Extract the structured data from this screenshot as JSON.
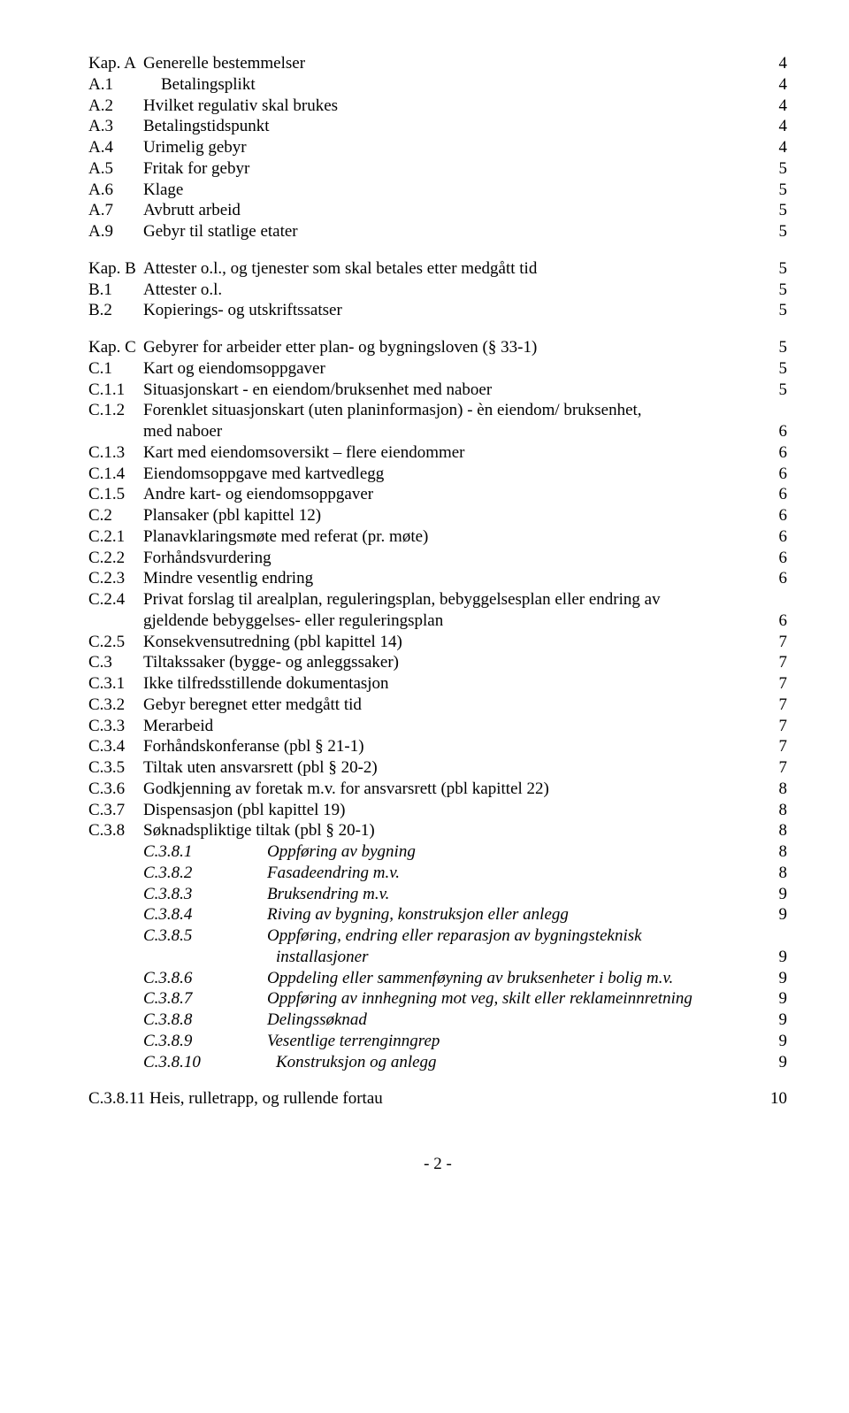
{
  "sectionA": {
    "header": {
      "code": "Kap. A",
      "title": "Generelle bestemmelser",
      "page": "4"
    },
    "items": [
      {
        "code": "A.1",
        "title": "Betalingsplikt",
        "page": "4",
        "extraPad": true
      },
      {
        "code": "A.2",
        "title": "Hvilket regulativ skal brukes",
        "page": "4"
      },
      {
        "code": "A.3",
        "title": "Betalingstidspunkt",
        "page": "4"
      },
      {
        "code": "A.4",
        "title": "Urimelig gebyr",
        "page": "4"
      },
      {
        "code": "A.5",
        "title": "Fritak for gebyr",
        "page": "5"
      },
      {
        "code": "A.6",
        "title": "Klage",
        "page": "5"
      },
      {
        "code": "A.7",
        "title": "Avbrutt arbeid",
        "page": "5"
      },
      {
        "code": "A.9",
        "title": "Gebyr til statlige etater",
        "page": "5"
      }
    ]
  },
  "sectionB": {
    "header": {
      "code": "Kap. B",
      "title": "Attester o.l., og tjenester som skal betales etter medgått tid",
      "page": "5"
    },
    "items": [
      {
        "code": "B.1",
        "title": "Attester o.l.",
        "page": "5"
      },
      {
        "code": "B.2",
        "title": "Kopierings- og utskriftssatser",
        "page": "5"
      }
    ]
  },
  "sectionC": {
    "header": {
      "code": "Kap. C",
      "title": "Gebyrer for arbeider etter plan- og bygningsloven (§ 33-1)",
      "page": "5"
    },
    "items": [
      {
        "code": "C.1",
        "title": "Kart og eiendomsoppgaver",
        "page": "5"
      },
      {
        "code": "C.1.1",
        "title": "Situasjonskart - en eiendom/bruksenhet med naboer",
        "page": "5"
      },
      {
        "code": "C.1.2",
        "title": "Forenklet situasjonskart (uten planinformasjon) - èn eiendom/ bruksenhet,",
        "cont": "med naboer",
        "page": "6",
        "wrap": true
      },
      {
        "code": "C.1.3",
        "title": "Kart med eiendomsoversikt – flere eiendommer",
        "page": "6"
      },
      {
        "code": "C.1.4",
        "title": "Eiendomsoppgave med kartvedlegg",
        "page": "6"
      },
      {
        "code": "C.1.5",
        "title": "Andre kart- og eiendomsoppgaver",
        "page": "6"
      },
      {
        "code": "C.2",
        "title": "Plansaker (pbl kapittel 12)",
        "page": "6"
      },
      {
        "code": "C.2.1",
        "title": "Planavklaringsmøte med referat (pr. møte)",
        "page": "6"
      },
      {
        "code": "C.2.2",
        "title": "Forhåndsvurdering",
        "page": "6"
      },
      {
        "code": "C.2.3",
        "title": "Mindre vesentlig endring",
        "page": "6"
      },
      {
        "code": "C.2.4",
        "title": "Privat forslag til arealplan, reguleringsplan, bebyggelsesplan eller endring av",
        "cont": "gjeldende bebyggelses- eller reguleringsplan",
        "page": "6",
        "wrap": true
      },
      {
        "code": "C.2.5",
        "title": "Konsekvensutredning (pbl kapittel 14)",
        "page": "7"
      },
      {
        "code": "C.3",
        "title": "Tiltakssaker (bygge- og anleggssaker)",
        "page": "7"
      },
      {
        "code": "C.3.1",
        "title": "Ikke tilfredsstillende dokumentasjon",
        "page": "7"
      },
      {
        "code": "C.3.2",
        "title": "Gebyr beregnet etter medgått tid",
        "page": "7"
      },
      {
        "code": "C.3.3",
        "title": "Merarbeid",
        "page": "7"
      },
      {
        "code": "C.3.4",
        "title": "Forhåndskonferanse (pbl § 21-1)",
        "page": "7"
      },
      {
        "code": "C.3.5",
        "title": "Tiltak uten ansvarsrett (pbl § 20-2)",
        "page": "7"
      },
      {
        "code": "C.3.6",
        "title": "Godkjenning av foretak m.v. for ansvarsrett (pbl kapittel 22)",
        "page": "8"
      },
      {
        "code": "C.3.7",
        "title": "Dispensasjon (pbl kapittel 19)",
        "page": "8"
      },
      {
        "code": "C.3.8",
        "title": "Søknadspliktige tiltak (pbl § 20-1)",
        "page": "8"
      }
    ],
    "subitems": [
      {
        "code": "C.3.8.1",
        "title": "Oppføring av bygning",
        "page": "8"
      },
      {
        "code": "C.3.8.2",
        "title": "Fasadeendring m.v.",
        "page": "8"
      },
      {
        "code": "C.3.8.3",
        "title": "Bruksendring m.v.",
        "page": "9"
      },
      {
        "code": "C.3.8.4",
        "title": "Riving av bygning, konstruksjon eller anlegg",
        "page": "9"
      },
      {
        "code": "C.3.8.5",
        "title": "Oppføring, endring eller reparasjon av bygningsteknisk",
        "cont": "installasjoner",
        "page": "9",
        "wrap": true
      },
      {
        "code": "C.3.8.6",
        "title": "Oppdeling eller sammenføyning av bruksenheter i bolig m.v.",
        "page": "9"
      },
      {
        "code": "C.3.8.7",
        "title": "Oppføring av innhegning mot veg, skilt eller reklameinnretning",
        "page": "9"
      },
      {
        "code": "C.3.8.8",
        "title": "Delingssøknad",
        "page": "9"
      },
      {
        "code": "C.3.8.9",
        "title": "Vesentlige terrenginngrep",
        "page": "9"
      },
      {
        "code": "C.3.8.10",
        "title": "Konstruksjon og anlegg",
        "page": "9"
      }
    ],
    "lastItem": {
      "code": "C.3.8.11",
      "title": "Heis, rulletrapp, og rullende fortau",
      "page": "10"
    }
  },
  "footer": "- 2 -"
}
